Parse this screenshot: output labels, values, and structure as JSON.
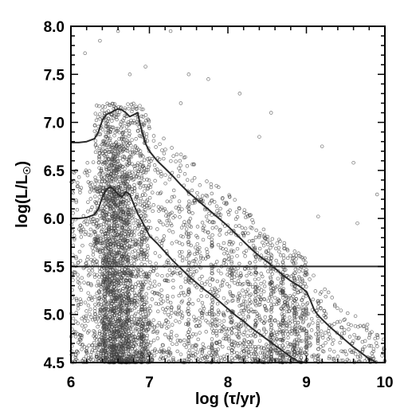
{
  "chart_data": {
    "type": "scatter",
    "title": "",
    "xlabel": "log (τ/yr)",
    "ylabel_main": "log(L/L",
    "ylabel_sun": "☉",
    "ylabel_close": ")",
    "xlim": [
      6,
      10
    ],
    "ylim": [
      4.5,
      8.0
    ],
    "x_ticks": [
      6,
      7,
      8,
      9,
      10
    ],
    "x_tick_labels": [
      "6",
      "7",
      "8",
      "9",
      "10"
    ],
    "y_ticks": [
      4.5,
      5.0,
      5.5,
      6.0,
      6.5,
      7.0,
      7.5,
      8.0
    ],
    "y_tick_labels": [
      "4.5",
      "5.0",
      "5.5",
      "6.0",
      "6.5",
      "7.0",
      "7.5",
      "8.0"
    ],
    "grid": false,
    "legend": "none",
    "marker": "open circle",
    "marker_color": "#444444",
    "line_color": "#2a2a2a",
    "point_clouds": [
      {
        "x": [
          6.3,
          7.0
        ],
        "y": [
          4.5,
          7.2
        ],
        "count": 1700
      },
      {
        "x": [
          6.4,
          6.75
        ],
        "y": [
          4.5,
          6.8
        ],
        "count": 900
      },
      {
        "x": [
          6.0,
          6.3
        ],
        "y": [
          4.5,
          6.6
        ],
        "count": 230
      },
      {
        "x": [
          7.0,
          8.0
        ],
        "y": [
          4.5,
          6.9
        ],
        "count": 650
      },
      {
        "x": [
          8.0,
          9.0
        ],
        "y": [
          4.5,
          6.3
        ],
        "count": 750
      },
      {
        "x": [
          9.0,
          10.0
        ],
        "y": [
          4.5,
          5.9
        ],
        "count": 180
      }
    ],
    "vertical_streaks": [
      {
        "x": 6.55,
        "y": [
          4.5,
          6.5
        ],
        "count": 70
      },
      {
        "x": 6.9,
        "y": [
          4.5,
          6.0
        ],
        "count": 55
      },
      {
        "x": 7.5,
        "y": [
          4.5,
          6.3
        ],
        "count": 45
      },
      {
        "x": 7.8,
        "y": [
          4.5,
          6.1
        ],
        "count": 40
      },
      {
        "x": 8.05,
        "y": [
          4.5,
          5.7
        ],
        "count": 35
      },
      {
        "x": 8.35,
        "y": [
          4.5,
          5.7
        ],
        "count": 40
      },
      {
        "x": 8.55,
        "y": [
          4.5,
          5.6
        ],
        "count": 45
      },
      {
        "x": 8.7,
        "y": [
          4.5,
          5.6
        ],
        "count": 40
      },
      {
        "x": 8.85,
        "y": [
          4.5,
          5.5
        ],
        "count": 35
      },
      {
        "x": 9.0,
        "y": [
          4.5,
          5.3
        ],
        "count": 30
      },
      {
        "x": 9.15,
        "y": [
          4.5,
          5.2
        ],
        "count": 25
      }
    ],
    "sparse_points": [
      {
        "x": 6.37,
        "y": 7.85
      },
      {
        "x": 6.18,
        "y": 7.72
      },
      {
        "x": 6.6,
        "y": 7.95
      },
      {
        "x": 6.75,
        "y": 7.5
      },
      {
        "x": 6.95,
        "y": 7.58
      },
      {
        "x": 7.27,
        "y": 7.95
      },
      {
        "x": 7.5,
        "y": 7.5
      },
      {
        "x": 7.75,
        "y": 7.45
      },
      {
        "x": 8.15,
        "y": 7.3
      },
      {
        "x": 8.55,
        "y": 7.1
      },
      {
        "x": 9.2,
        "y": 6.75
      },
      {
        "x": 9.6,
        "y": 6.58
      },
      {
        "x": 9.9,
        "y": 6.25
      },
      {
        "x": 9.15,
        "y": 6.02
      },
      {
        "x": 9.65,
        "y": 5.95
      },
      {
        "x": 8.4,
        "y": 6.85
      },
      {
        "x": 7.4,
        "y": 7.2
      }
    ],
    "series": [
      {
        "name": "upper track",
        "x": [
          6.0,
          6.1,
          6.2,
          6.3,
          6.35,
          6.4,
          6.45,
          6.5,
          6.55,
          6.6,
          6.65,
          6.7,
          6.75,
          6.8,
          6.85,
          6.9,
          6.95,
          7.0,
          7.1,
          7.2,
          7.3,
          7.4,
          7.5,
          7.6,
          7.7,
          7.8,
          7.9,
          8.0,
          8.1,
          8.2,
          8.3,
          8.4,
          8.5,
          8.6,
          8.7,
          8.8,
          8.9,
          9.0,
          9.05,
          9.1,
          9.15,
          9.2,
          9.3,
          9.4,
          9.5,
          9.6,
          9.7,
          9.8,
          9.9,
          10.0
        ],
        "y": [
          6.79,
          6.79,
          6.8,
          6.83,
          6.9,
          7.02,
          7.08,
          7.1,
          7.12,
          7.14,
          7.13,
          7.1,
          7.06,
          7.08,
          7.1,
          6.92,
          6.78,
          6.7,
          6.6,
          6.52,
          6.44,
          6.35,
          6.27,
          6.2,
          6.13,
          6.06,
          5.99,
          5.92,
          5.84,
          5.76,
          5.68,
          5.61,
          5.55,
          5.48,
          5.41,
          5.35,
          5.3,
          5.24,
          5.15,
          5.05,
          4.99,
          4.95,
          4.87,
          4.8,
          4.73,
          4.66,
          4.6,
          4.54,
          4.5,
          4.5
        ]
      },
      {
        "name": "lower track",
        "x": [
          6.0,
          6.1,
          6.2,
          6.3,
          6.35,
          6.4,
          6.45,
          6.5,
          6.55,
          6.6,
          6.65,
          6.7,
          6.75,
          6.8,
          6.85,
          6.9,
          6.95,
          7.0,
          7.1,
          7.2,
          7.3,
          7.4,
          7.5,
          7.6,
          7.7,
          7.8,
          7.9,
          8.0,
          8.1,
          8.2,
          8.3,
          8.4,
          8.5,
          8.6,
          8.7,
          8.8,
          8.9,
          9.0
        ],
        "y": [
          6.0,
          6.0,
          6.01,
          6.04,
          6.1,
          6.22,
          6.3,
          6.33,
          6.3,
          6.25,
          6.22,
          6.28,
          6.25,
          6.15,
          6.05,
          5.98,
          5.9,
          5.82,
          5.74,
          5.65,
          5.56,
          5.48,
          5.4,
          5.33,
          5.26,
          5.2,
          5.13,
          5.06,
          4.99,
          4.93,
          4.86,
          4.8,
          4.74,
          4.68,
          4.62,
          4.56,
          4.51,
          4.5
        ]
      },
      {
        "name": "horizontal line",
        "x": [
          6.0,
          10.0
        ],
        "y": [
          5.5,
          5.5
        ]
      }
    ]
  }
}
